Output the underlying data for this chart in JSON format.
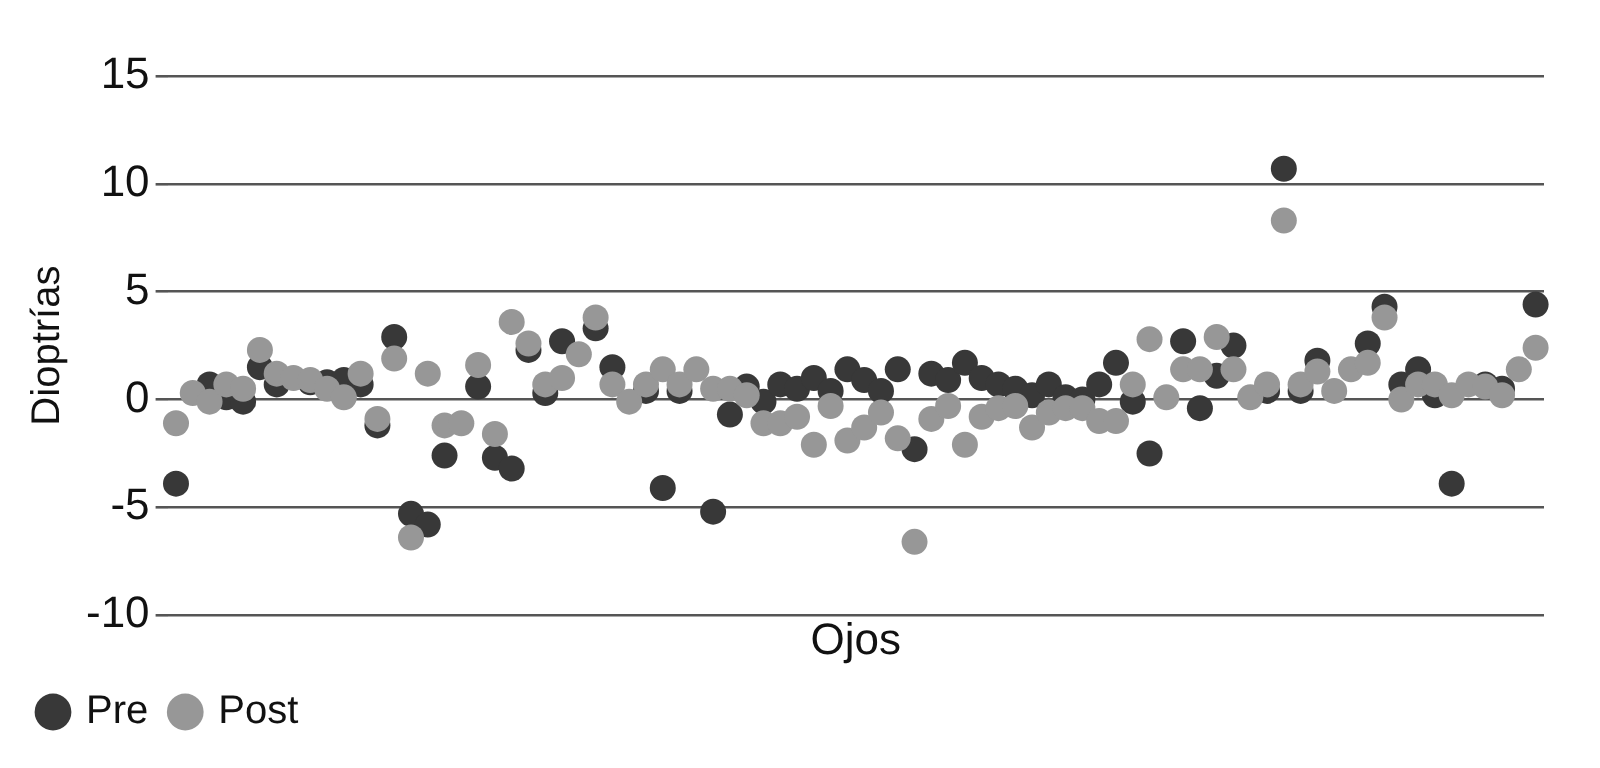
{
  "chart_data": {
    "type": "scatter",
    "xlabel": "Ojos",
    "ylabel": "Dioptrías",
    "categories": [
      null,
      null,
      null,
      null,
      null,
      null,
      null,
      null,
      null,
      null,
      null,
      null,
      null,
      null,
      null,
      null,
      null,
      null,
      null,
      null,
      null,
      null,
      null,
      null,
      null,
      null,
      null,
      null,
      null,
      null,
      null,
      null,
      null,
      null,
      null,
      null,
      null,
      null,
      null,
      null,
      null,
      null,
      null,
      null,
      null,
      null,
      null,
      null,
      null,
      null,
      null,
      null,
      null,
      null,
      null,
      null,
      null,
      null,
      null,
      null,
      null,
      null,
      null,
      null,
      null,
      null,
      null,
      null,
      null,
      null,
      null,
      null,
      null,
      null,
      null,
      null,
      null,
      null,
      null,
      null,
      null,
      null
    ],
    "series": [
      {
        "name": "Pre",
        "color": "#383838",
        "values": [
          -3.9,
          null,
          0.7,
          0.1,
          -0.1,
          1.5,
          0.7,
          null,
          0.8,
          0.8,
          0.9,
          0.7,
          -1.2,
          2.9,
          -5.3,
          -5.8,
          -2.6,
          null,
          0.6,
          -2.7,
          -3.2,
          2.3,
          0.3,
          2.7,
          null,
          3.3,
          1.5,
          null,
          0.4,
          -4.1,
          0.4,
          null,
          -5.2,
          -0.7,
          0.6,
          -0.1,
          0.7,
          0.5,
          1.0,
          0.4,
          1.4,
          0.9,
          0.4,
          1.4,
          -2.3,
          1.2,
          0.9,
          1.7,
          1.0,
          0.7,
          0.5,
          0.2,
          0.7,
          0.1,
          0.0,
          0.7,
          1.7,
          -0.1,
          -2.5,
          null,
          2.7,
          -0.4,
          1.1,
          2.5,
          null,
          0.4,
          10.7,
          0.4,
          1.8,
          null,
          null,
          2.6,
          4.3,
          0.7,
          1.4,
          0.2,
          -3.9,
          null,
          0.7,
          0.5,
          null,
          4.4
        ]
      },
      {
        "name": "Post",
        "color": "#979797",
        "values": [
          -1.1,
          0.3,
          -0.1,
          0.7,
          0.5,
          2.3,
          1.2,
          1.0,
          0.9,
          0.5,
          0.1,
          1.2,
          -0.9,
          1.9,
          -6.4,
          1.2,
          -1.2,
          -1.1,
          1.6,
          -1.6,
          3.6,
          2.6,
          0.7,
          1.0,
          2.1,
          3.8,
          0.7,
          -0.1,
          0.7,
          1.4,
          0.7,
          1.4,
          0.5,
          0.5,
          0.2,
          -1.1,
          -1.1,
          -0.8,
          -2.1,
          -0.3,
          -1.9,
          -1.3,
          -0.6,
          -1.8,
          -6.6,
          -0.9,
          -0.3,
          -2.1,
          -0.8,
          -0.4,
          -0.3,
          -1.3,
          -0.6,
          -0.4,
          -0.4,
          -1.0,
          -1.0,
          0.7,
          2.8,
          0.1,
          1.4,
          1.4,
          2.9,
          1.4,
          0.1,
          0.7,
          8.3,
          0.7,
          1.3,
          0.4,
          1.4,
          1.7,
          3.8,
          0.0,
          0.7,
          0.7,
          0.2,
          0.7,
          0.6,
          0.2,
          1.4,
          2.4
        ]
      }
    ],
    "ylim": [
      -10,
      15
    ],
    "yticks": [
      -10,
      -5,
      0,
      5,
      10,
      15
    ],
    "grid": "y",
    "legend": "bottom left",
    "tick_labels": "y",
    "marker": "circle"
  }
}
